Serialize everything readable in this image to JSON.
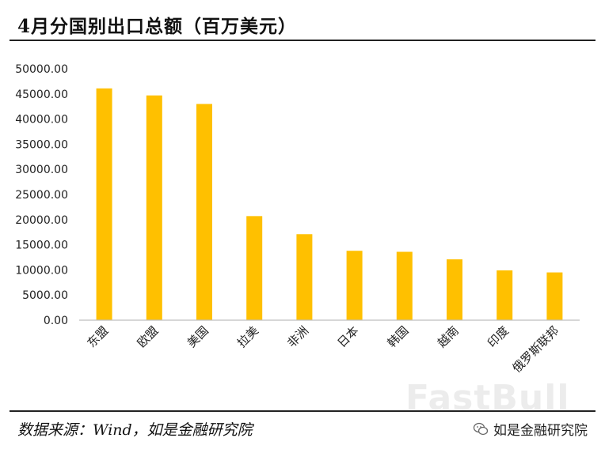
{
  "title": "4月分国别出口总额（百万美元）",
  "source": "数据来源：Wind，如是金融研究院",
  "wechat_label": "如是金融研究院",
  "watermark": "FastBull",
  "colors": {
    "bar": "#FFC000",
    "axis": "#BFBFBF"
  },
  "chart_data": {
    "type": "bar",
    "categories": [
      "东盟",
      "欧盟",
      "美国",
      "拉美",
      "非洲",
      "日本",
      "韩国",
      "越南",
      "印度",
      "俄罗斯联邦"
    ],
    "values": [
      46100,
      44700,
      43000,
      20700,
      17100,
      13800,
      13600,
      12100,
      9900,
      9500
    ],
    "ylim": [
      0,
      50000
    ],
    "yticks": [
      "0.00",
      "5000.00",
      "10000.00",
      "15000.00",
      "20000.00",
      "25000.00",
      "30000.00",
      "35000.00",
      "40000.00",
      "45000.00",
      "50000.00"
    ],
    "grid": false
  }
}
